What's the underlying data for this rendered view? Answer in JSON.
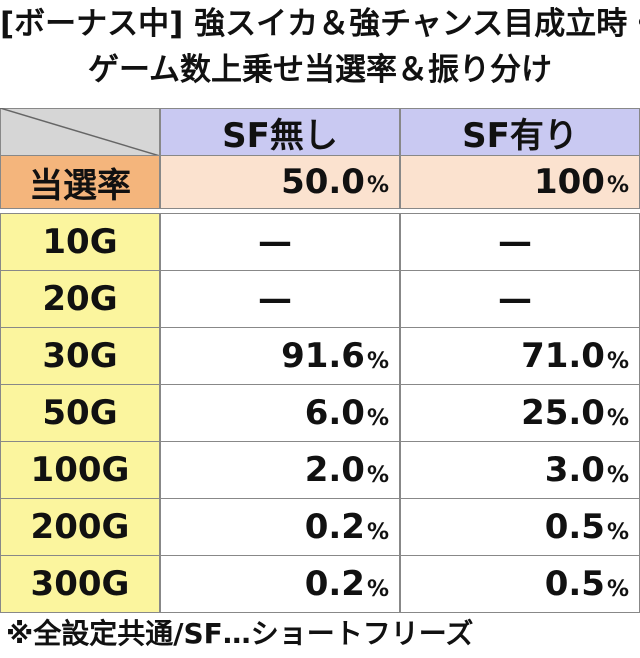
{
  "title": [
    "[ボーナス中] 強スイカ＆強チャンス目成立時・",
    "ゲーム数上乗せ当選率＆振り分け"
  ],
  "table": {
    "columns": [
      "SF無し",
      "SF有り"
    ],
    "rate_row": {
      "label": "当選率",
      "cells": [
        {
          "value": "50.0",
          "unit": "%"
        },
        {
          "value": "100",
          "unit": "%"
        }
      ]
    },
    "rows": [
      {
        "label": "10G",
        "cells": [
          "—",
          "—"
        ]
      },
      {
        "label": "20G",
        "cells": [
          "—",
          "—"
        ]
      },
      {
        "label": "30G",
        "cells": [
          {
            "value": "91.6",
            "unit": "%"
          },
          {
            "value": "71.0",
            "unit": "%"
          }
        ]
      },
      {
        "label": "50G",
        "cells": [
          {
            "value": "6.0",
            "unit": "%"
          },
          {
            "value": "25.0",
            "unit": "%"
          }
        ]
      },
      {
        "label": "100G",
        "cells": [
          {
            "value": "2.0",
            "unit": "%"
          },
          {
            "value": "3.0",
            "unit": "%"
          }
        ]
      },
      {
        "label": "200G",
        "cells": [
          {
            "value": "0.2",
            "unit": "%"
          },
          {
            "value": "0.5",
            "unit": "%"
          }
        ]
      },
      {
        "label": "300G",
        "cells": [
          {
            "value": "0.2",
            "unit": "%"
          },
          {
            "value": "0.5",
            "unit": "%"
          }
        ]
      }
    ]
  },
  "footnote": "※全設定共通/SF…ショートフリーズ"
}
